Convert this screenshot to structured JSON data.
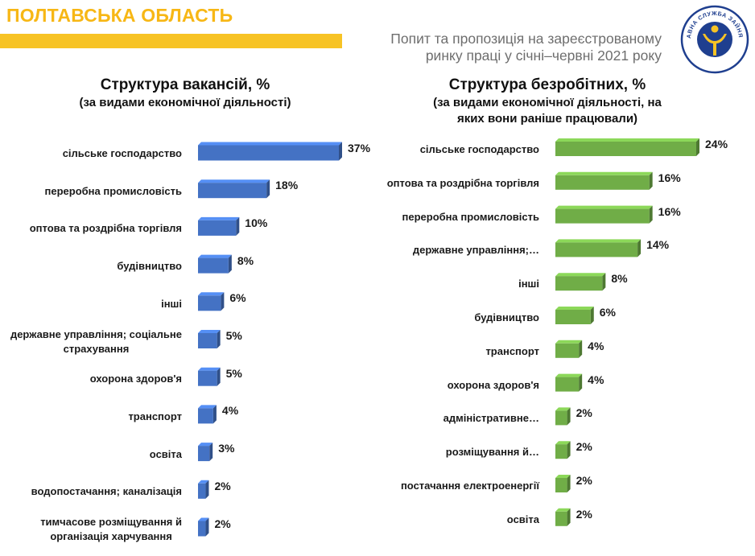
{
  "header": {
    "region": "ПОЛТАВСЬКА ОБЛАСТЬ",
    "subtitle_line1": "Попит та пропозиція на зареєстрованому",
    "subtitle_line2": "ринку праці у січні–червні 2021 року",
    "logo_text": "ДЕРЖАВНА СЛУЖБА ЗАЙНЯТОСТІ",
    "logo_color": "#1f3f8f",
    "accent_color": "#f7c325"
  },
  "chart_data": [
    {
      "type": "bar",
      "orientation": "horizontal",
      "title": "Структура вакансій, %",
      "subtitle": "(за видами економічної діяльності)",
      "color": "#4472c4",
      "categories": [
        "сільське господарство",
        "переробна промисловість",
        "оптова та роздрібна торгівля",
        "будівництво",
        "інші",
        "державне управління; соціальне страхування",
        "охорона здоров'я",
        "транспорт",
        "освіта",
        "водопостачання; каналізація",
        "тимчасове розміщування й організація харчування"
      ],
      "values": [
        37,
        18,
        10,
        8,
        6,
        5,
        5,
        4,
        3,
        2,
        2
      ],
      "value_labels": [
        "37%",
        "18%",
        "10%",
        "8%",
        "6%",
        "5%",
        "5%",
        "4%",
        "3%",
        "2%",
        "2%"
      ]
    },
    {
      "type": "bar",
      "orientation": "horizontal",
      "title": "Структура безробітних, %",
      "subtitle": "(за видами економічної діяльності, на яких вони раніше працювали)",
      "color": "#70ad47",
      "categories": [
        "сільське господарство",
        "оптова та роздрібна торгівля",
        "переробна промисловість",
        "державне управління;…",
        "інші",
        "будівництво",
        "транспорт",
        "охорона здоров'я",
        "адміністративне…",
        "розміщування й…",
        "постачання електроенергії",
        "освіта"
      ],
      "values": [
        24,
        16,
        16,
        14,
        8,
        6,
        4,
        4,
        2,
        2,
        2,
        2
      ],
      "value_labels": [
        "24%",
        "16%",
        "16%",
        "14%",
        "8%",
        "6%",
        "4%",
        "4%",
        "2%",
        "2%",
        "2%",
        "2%"
      ]
    }
  ]
}
